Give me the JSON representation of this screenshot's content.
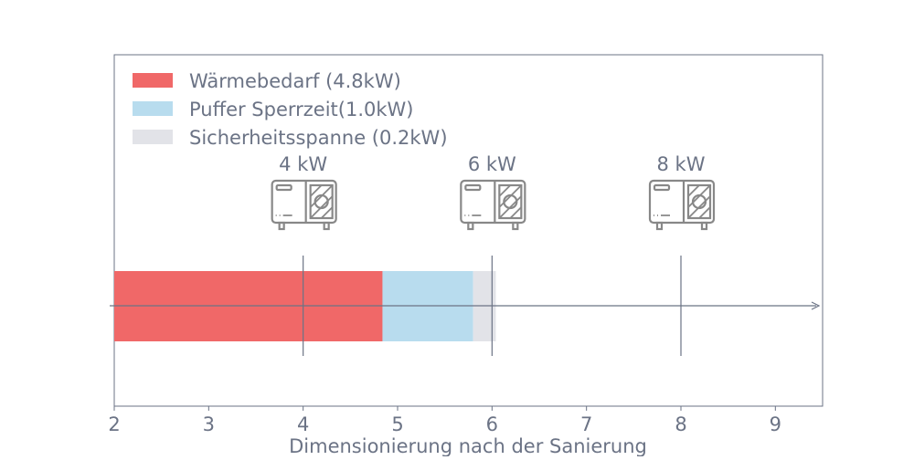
{
  "chart_data": {
    "type": "bar",
    "orientation": "horizontal-stacked",
    "xlabel": "Dimensionierung nach der Sanierung",
    "xlim": [
      2,
      9.5
    ],
    "xticks": [
      2,
      3,
      4,
      5,
      6,
      7,
      8,
      9
    ],
    "grid": false,
    "legend_position": "top-left",
    "segments": [
      {
        "name": "Wärmebedarf (4.8kW)",
        "start": 2,
        "end": 4.84,
        "color": "#f06868"
      },
      {
        "name": "Puffer Sperrzeit(1.0kW)",
        "start": 4.84,
        "end": 5.8,
        "color": "#b8dcee"
      },
      {
        "name": "Sicherheitsspanne (0.2kW)",
        "start": 5.8,
        "end": 6.04,
        "color": "#e2e3e8"
      }
    ],
    "markers": [
      {
        "x": 4,
        "label": "4 kW",
        "icon": "heat-pump-icon"
      },
      {
        "x": 6,
        "label": "6 kW",
        "icon": "heat-pump-icon"
      },
      {
        "x": 8,
        "label": "8 kW",
        "icon": "heat-pump-icon"
      }
    ],
    "text_color": "#6b7385",
    "axis_color": "#6b7385"
  }
}
